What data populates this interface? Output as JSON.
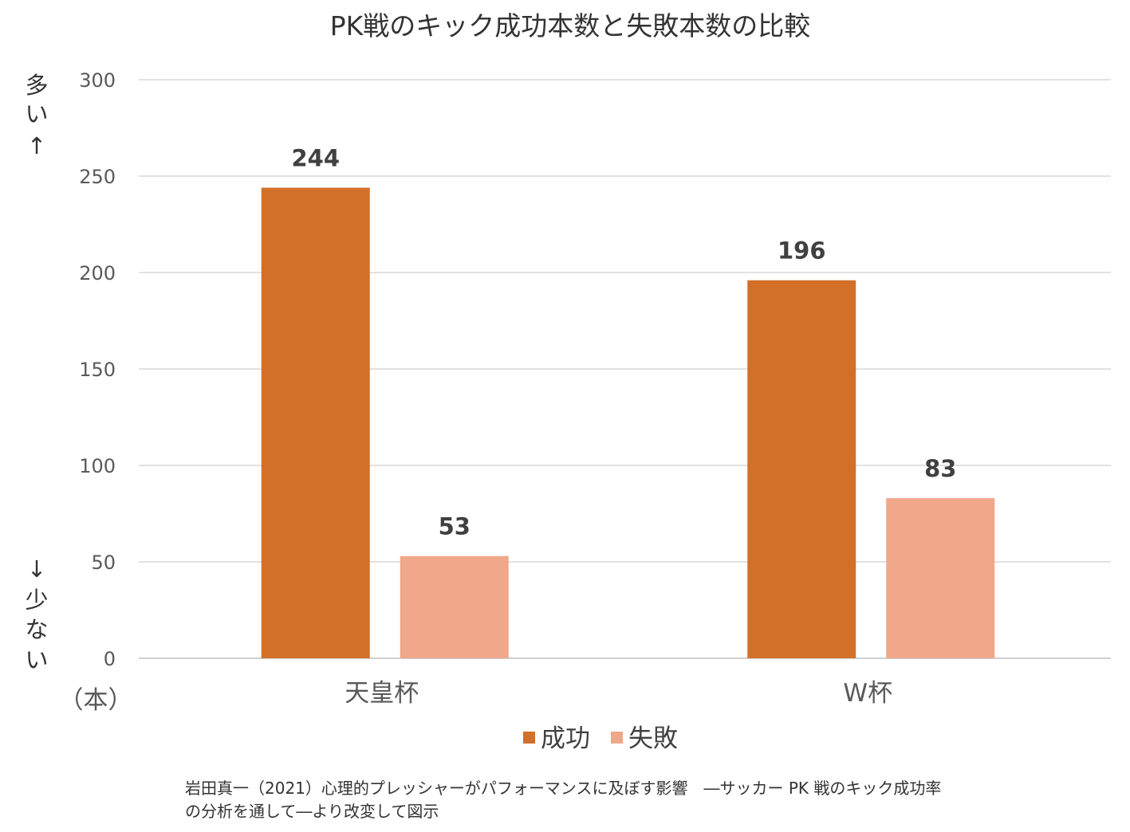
{
  "chart_data": {
    "type": "bar",
    "title": "PK戦のキック成功本数と失敗本数の比較",
    "categories": [
      "天皇杯",
      "W杯"
    ],
    "series": [
      {
        "name": "成功",
        "values": [
          244,
          196
        ],
        "color": "#D2702A"
      },
      {
        "name": "失敗",
        "values": [
          53,
          83
        ],
        "color": "#F0A78A"
      }
    ],
    "ylim": [
      0,
      300
    ],
    "yticks": [
      0,
      50,
      100,
      150,
      200,
      250,
      300
    ],
    "unit": "（本）",
    "ylabel_top": [
      "多",
      "い",
      "↑"
    ],
    "ylabel_bottom": [
      "↓",
      "少",
      "な",
      "い"
    ],
    "grid": true,
    "legend_position": "bottom",
    "data_labels": true
  },
  "source": {
    "line1": "岩田真一（2021）心理的プレッシャーがパフォーマンスに及ぼす影響　―サッカー PK 戦のキック成功率",
    "line2": "の分析を通して―より改変して図示"
  }
}
